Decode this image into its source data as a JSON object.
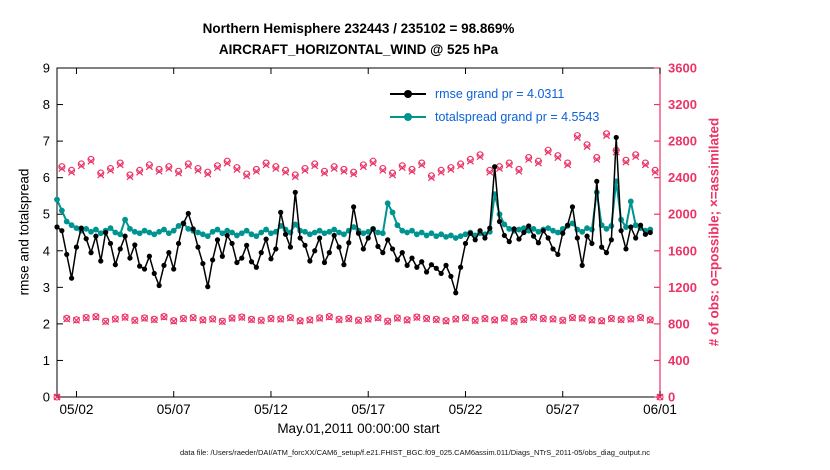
{
  "header": {
    "title_line1": "Northern Hemisphere 232443 / 235102 = 98.869%",
    "title_line2": "AIRCRAFT_HORIZONTAL_WIND @ 525 hPa"
  },
  "legend": {
    "rmse_label": "rmse grand pr = 4.0311",
    "totalspread_label": "totalspread grand pr = 4.5543"
  },
  "axes": {
    "ylabel_left": "rmse and totalspread",
    "ylabel_right": "# of obs: o=possible; ×=assimilated",
    "xlabel": "May.01,2011 00:00:00 start",
    "ylim_left": [
      0,
      9
    ],
    "ylim_right": [
      0,
      3600
    ],
    "left_ticks": [
      0,
      1,
      2,
      3,
      4,
      5,
      6,
      7,
      8,
      9
    ],
    "right_ticks": [
      0,
      400,
      800,
      1200,
      1600,
      2000,
      2400,
      2800,
      3200,
      3600
    ],
    "x_domain_days": [
      1,
      32
    ],
    "x_tick_days": [
      2,
      7,
      12,
      17,
      22,
      27,
      32
    ],
    "x_tick_labels": [
      "05/02",
      "05/07",
      "05/12",
      "05/17",
      "05/22",
      "05/27",
      "06/01"
    ]
  },
  "footer": {
    "datafile": "data file: /Users/raeder/DAI/ATM_forcXX/CAM6_setup/f.e21.FHIST_BGC.f09_025.CAM6assim.011/Diags_NTrS_2011-05/obs_diag_output.nc"
  },
  "colors": {
    "rmse": "#000000",
    "totalspread": "#009490",
    "obs": "#ec3366",
    "legend_text": "#0c62d8"
  },
  "chart_data": {
    "type": "line",
    "title": "Northern Hemisphere 232443 / 235102 = 98.869% | AIRCRAFT_HORIZONTAL_WIND @ 525 hPa",
    "xlabel": "May.01,2011 00:00:00 start",
    "ylabel_left": "rmse and totalspread",
    "ylabel_right": "# of obs: o=possible; ×=assimilated",
    "time_axis": {
      "start_day": 1,
      "step_days": 0.25,
      "note": "day 1 = May 01 2011 00:00, ticks every 5 days"
    },
    "series": [
      {
        "name": "rmse",
        "grand_prior": 4.0311,
        "color_key": "rmse",
        "values": [
          4.65,
          4.55,
          3.9,
          3.25,
          4.1,
          4.62,
          4.33,
          3.95,
          4.4,
          3.72,
          4.5,
          4.2,
          3.62,
          4.05,
          4.4,
          3.8,
          4.16,
          3.58,
          3.5,
          3.85,
          3.38,
          3.05,
          3.6,
          3.95,
          3.5,
          4.2,
          4.75,
          5.02,
          4.6,
          4.1,
          3.65,
          3.02,
          3.75,
          4.3,
          3.85,
          4.42,
          4.2,
          3.68,
          3.8,
          4.15,
          3.7,
          3.55,
          3.95,
          4.32,
          3.78,
          4.05,
          5.05,
          4.45,
          4.1,
          5.6,
          4.35,
          4.15,
          3.72,
          4.0,
          4.35,
          3.68,
          3.95,
          4.42,
          4.1,
          3.62,
          4.22,
          5.2,
          4.48,
          4.05,
          4.35,
          4.6,
          4.12,
          3.95,
          4.3,
          4.05,
          3.75,
          3.95,
          3.6,
          3.8,
          3.55,
          3.7,
          3.42,
          3.62,
          3.52,
          3.38,
          3.6,
          3.3,
          2.85,
          3.55,
          4.2,
          4.48,
          4.3,
          4.55,
          4.35,
          4.62,
          6.3,
          4.8,
          4.42,
          4.25,
          4.6,
          4.32,
          4.5,
          4.68,
          4.4,
          4.22,
          4.55,
          4.35,
          4.05,
          3.9,
          4.48,
          4.7,
          5.2,
          4.35,
          3.6,
          4.4,
          4.2,
          5.9,
          4.1,
          3.95,
          4.3,
          7.1,
          4.55,
          4.05,
          4.65,
          4.35,
          4.7,
          4.45,
          4.5
        ]
      },
      {
        "name": "totalspread",
        "grand_prior": 4.5543,
        "color_key": "totalspread",
        "values": [
          5.4,
          5.1,
          4.8,
          4.7,
          4.62,
          4.55,
          4.6,
          4.52,
          4.58,
          4.48,
          4.55,
          4.62,
          4.5,
          4.45,
          4.85,
          4.6,
          4.52,
          4.48,
          4.55,
          4.5,
          4.45,
          4.52,
          4.58,
          4.48,
          4.55,
          4.68,
          4.75,
          4.6,
          4.55,
          4.5,
          4.45,
          4.4,
          4.52,
          4.58,
          4.48,
          4.55,
          4.5,
          4.42,
          4.48,
          4.55,
          4.45,
          4.4,
          4.5,
          4.58,
          4.48,
          4.52,
          4.68,
          4.58,
          4.5,
          4.72,
          4.55,
          4.52,
          4.45,
          4.5,
          4.55,
          4.48,
          4.52,
          4.58,
          4.5,
          4.45,
          4.55,
          4.65,
          4.55,
          4.48,
          4.52,
          4.6,
          4.5,
          4.48,
          5.3,
          5.05,
          4.7,
          4.55,
          4.5,
          4.55,
          4.45,
          4.5,
          4.42,
          4.48,
          4.4,
          4.45,
          4.38,
          4.42,
          4.35,
          4.4,
          4.45,
          4.5,
          4.42,
          4.48,
          4.45,
          4.52,
          5.55,
          5.0,
          4.72,
          4.6,
          4.55,
          4.58,
          4.62,
          4.55,
          4.6,
          4.52,
          4.58,
          4.62,
          4.55,
          4.5,
          4.6,
          4.68,
          4.75,
          4.58,
          4.52,
          4.62,
          4.58,
          5.6,
          4.7,
          4.6,
          4.68,
          5.9,
          4.85,
          4.65,
          5.35,
          4.7,
          4.62,
          4.55,
          4.58
        ]
      }
    ],
    "obs_counts": {
      "axis": "right",
      "possible": [
        0,
        2520,
        860,
        2480,
        845,
        2550,
        870,
        2600,
        880,
        2450,
        830,
        2500,
        855,
        2560,
        875,
        2430,
        840,
        2480,
        865,
        2540,
        850,
        2490,
        880,
        2520,
        835,
        2470,
        860,
        2550,
        870,
        2500,
        845,
        2460,
        855,
        2530,
        830,
        2580,
        865,
        2510,
        875,
        2440,
        850,
        2490,
        840,
        2560,
        860,
        2520,
        855,
        2480,
        870,
        2430,
        835,
        2500,
        845,
        2550,
        865,
        2470,
        880,
        2520,
        850,
        2490,
        860,
        2460,
        840,
        2540,
        855,
        2580,
        870,
        2500,
        830,
        2450,
        865,
        2530,
        845,
        2490,
        875,
        2560,
        860,
        2420,
        850,
        2480,
        835,
        2510,
        855,
        2550,
        870,
        2600,
        840,
        2650,
        860,
        2480,
        845,
        2520,
        865,
        2560,
        830,
        2490,
        850,
        2620,
        875,
        2580,
        860,
        2700,
        855,
        2640,
        840,
        2560,
        870,
        2860,
        865,
        2760,
        845,
        2620,
        835,
        2880,
        860,
        2700,
        850,
        2590,
        855,
        2650,
        870,
        2560,
        845,
        2480,
        0
      ],
      "assimilated": [
        0,
        2500,
        854,
        2460,
        839,
        2530,
        864,
        2580,
        874,
        2430,
        824,
        2480,
        849,
        2540,
        869,
        2410,
        834,
        2460,
        859,
        2520,
        844,
        2470,
        874,
        2500,
        829,
        2450,
        854,
        2530,
        864,
        2480,
        839,
        2440,
        849,
        2510,
        824,
        2560,
        859,
        2490,
        869,
        2420,
        844,
        2470,
        834,
        2540,
        854,
        2500,
        849,
        2460,
        864,
        2410,
        829,
        2480,
        839,
        2530,
        859,
        2450,
        874,
        2500,
        844,
        2470,
        854,
        2440,
        834,
        2520,
        849,
        2560,
        864,
        2480,
        824,
        2430,
        859,
        2510,
        839,
        2470,
        869,
        2540,
        854,
        2400,
        844,
        2460,
        829,
        2490,
        849,
        2530,
        864,
        2580,
        834,
        2630,
        854,
        2460,
        839,
        2500,
        859,
        2540,
        824,
        2470,
        844,
        2600,
        869,
        2560,
        854,
        2680,
        849,
        2620,
        834,
        2540,
        864,
        2840,
        859,
        2740,
        839,
        2600,
        829,
        2860,
        854,
        2680,
        844,
        2570,
        849,
        2630,
        864,
        2540,
        839,
        2460,
        0
      ]
    }
  }
}
